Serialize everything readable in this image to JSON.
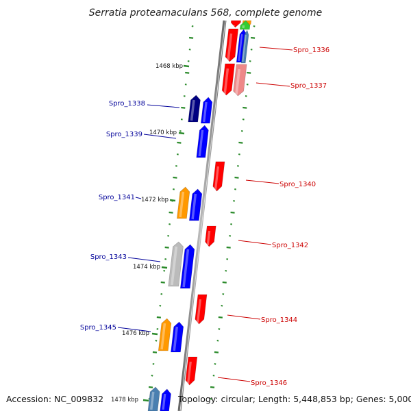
{
  "title": "Serratia proteamaculans 568, complete genome",
  "footer": {
    "accession": "Accession: NC_009832",
    "topology": "Topology: circular; Length: 5,448,853 bp; Genes: 5,000"
  },
  "kbp_ticks": [
    "1468 kbp",
    "1470 kbp",
    "1472 kbp",
    "1474 kbp",
    "1476 kbp",
    "1478 kbp"
  ],
  "gene_labels_reverse": [
    "Spro_1336",
    "Spro_1337",
    "Spro_1340",
    "Spro_1342",
    "Spro_1344",
    "Spro_1346"
  ],
  "gene_labels_forward": [
    "Spro_1338",
    "Spro_1339",
    "Spro_1341",
    "Spro_1343",
    "Spro_1345"
  ],
  "colors": {
    "reverse_label": "#cc0000",
    "forward_label": "#000099",
    "reverse_gene": "#ff0000",
    "forward_gene": "#0000ff",
    "orange_gene": "#ff9900",
    "green_gene": "#33cc33",
    "navy_gene": "#000080",
    "grey_gene": "#bbbbbb",
    "pink_gene": "#ee8888",
    "teal_gene": "#4a7fb0",
    "tick_green": "#2a8a2a",
    "backbone": "#888888"
  }
}
